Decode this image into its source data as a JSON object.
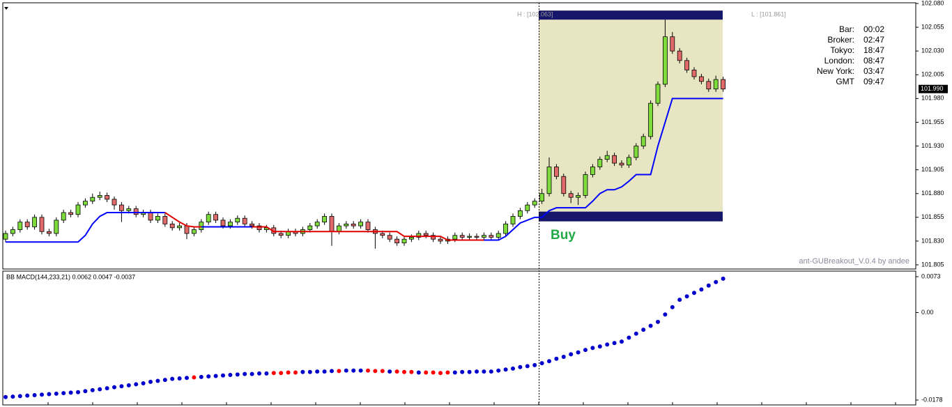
{
  "chart_data": [
    {
      "type": "candlestick",
      "ylim": [
        101.805,
        102.08
      ],
      "yticks": [
        {
          "value": 102.08,
          "label": "102.080"
        },
        102.055,
        {
          "value": 102.03,
          "label": "102.030"
        },
        102.005,
        {
          "value": 101.98,
          "label": "101.980"
        },
        101.955,
        {
          "value": 101.93,
          "label": "101.930"
        },
        101.905,
        {
          "value": 101.88,
          "label": "101.880"
        },
        101.855,
        {
          "value": 101.83,
          "label": "101.830"
        },
        101.805
      ],
      "up_color": "#7ddc3c",
      "down_color": "#e06a6a",
      "open": [
        101.832,
        101.838,
        101.842,
        101.85,
        101.845,
        101.855,
        101.84,
        101.838,
        101.852,
        101.86,
        101.858,
        101.868,
        101.872,
        101.876,
        101.878,
        101.874,
        101.868,
        101.862,
        101.864,
        101.858,
        101.86,
        101.852,
        101.856,
        101.848,
        101.844,
        101.846,
        101.838,
        101.842,
        101.85,
        101.858,
        101.852,
        101.846,
        101.85,
        101.854,
        101.848,
        101.846,
        101.842,
        101.844,
        101.838,
        101.836,
        101.84,
        101.838,
        101.842,
        101.846,
        101.85,
        101.856,
        101.84,
        101.846,
        101.848,
        101.846,
        101.85,
        101.842,
        101.838,
        101.836,
        101.832,
        101.828,
        101.832,
        101.834,
        101.838,
        101.836,
        101.832,
        101.83,
        101.832,
        101.836,
        101.834,
        101.835,
        101.834,
        101.836,
        101.834,
        101.838,
        101.848,
        101.856,
        101.862,
        101.868,
        101.872,
        101.88,
        101.908,
        101.898,
        101.88,
        101.876,
        101.878,
        101.9,
        101.908,
        101.916,
        101.92,
        101.912,
        101.91,
        101.918,
        101.93,
        101.94,
        101.975,
        101.995,
        102.045,
        102.03,
        102.02,
        102.01,
        102.003,
        101.998,
        101.99,
        102
      ],
      "high": [
        101.841,
        101.845,
        101.853,
        101.853,
        101.858,
        101.858,
        101.843,
        101.855,
        101.863,
        101.863,
        101.871,
        101.875,
        101.88,
        101.882,
        101.881,
        101.877,
        101.871,
        101.867,
        101.867,
        101.863,
        101.863,
        101.859,
        101.859,
        101.851,
        101.849,
        101.849,
        101.845,
        101.853,
        101.861,
        101.861,
        101.855,
        101.853,
        101.857,
        101.857,
        101.851,
        101.849,
        101.847,
        101.847,
        101.841,
        101.843,
        101.843,
        101.845,
        101.849,
        101.853,
        101.859,
        101.859,
        101.849,
        101.851,
        101.851,
        101.853,
        101.853,
        101.845,
        101.841,
        101.839,
        101.835,
        101.835,
        101.837,
        101.841,
        101.841,
        101.839,
        101.835,
        101.835,
        101.839,
        101.839,
        101.838,
        101.838,
        101.839,
        101.839,
        101.841,
        101.851,
        101.859,
        101.865,
        101.871,
        101.875,
        101.885,
        101.918,
        101.911,
        101.901,
        101.883,
        101.881,
        101.903,
        101.911,
        101.919,
        101.925,
        101.923,
        101.915,
        101.921,
        101.933,
        101.943,
        101.978,
        101.998,
        102.063,
        102.05,
        102.033,
        102.023,
        102.013,
        102.006,
        102.001,
        102.004,
        102.003
      ],
      "low": [
        101.829,
        101.835,
        101.839,
        101.842,
        101.842,
        101.837,
        101.835,
        101.835,
        101.849,
        101.855,
        101.855,
        101.865,
        101.869,
        101.873,
        101.871,
        101.863,
        101.85,
        101.859,
        101.855,
        101.855,
        101.849,
        101.849,
        101.845,
        101.841,
        101.841,
        101.832,
        101.835,
        101.839,
        101.847,
        101.849,
        101.843,
        101.843,
        101.847,
        101.845,
        101.843,
        101.839,
        101.839,
        101.835,
        101.833,
        101.833,
        101.835,
        101.835,
        101.839,
        101.843,
        101.847,
        101.825,
        101.837,
        101.843,
        101.843,
        101.843,
        101.839,
        101.822,
        101.833,
        101.829,
        101.825,
        101.825,
        101.829,
        101.831,
        101.833,
        101.829,
        101.827,
        101.827,
        101.829,
        101.831,
        101.831,
        101.831,
        101.831,
        101.831,
        101.831,
        101.835,
        101.845,
        101.853,
        101.859,
        101.865,
        101.869,
        101.877,
        101.895,
        101.877,
        101.87,
        101.868,
        101.875,
        101.897,
        101.905,
        101.913,
        101.909,
        101.907,
        101.907,
        101.915,
        101.927,
        101.937,
        101.972,
        101.992,
        102.027,
        102.017,
        102.007,
        102,
        101.995,
        101.987,
        101.987,
        101.987
      ],
      "close": [
        101.838,
        101.842,
        101.85,
        101.845,
        101.855,
        101.84,
        101.838,
        101.852,
        101.86,
        101.858,
        101.868,
        101.872,
        101.876,
        101.878,
        101.874,
        101.868,
        101.862,
        101.864,
        101.858,
        101.86,
        101.852,
        101.856,
        101.848,
        101.844,
        101.846,
        101.838,
        101.842,
        101.85,
        101.858,
        101.852,
        101.846,
        101.85,
        101.854,
        101.848,
        101.846,
        101.842,
        101.844,
        101.838,
        101.836,
        101.84,
        101.838,
        101.842,
        101.846,
        101.85,
        101.856,
        101.84,
        101.846,
        101.848,
        101.846,
        101.85,
        101.842,
        101.838,
        101.836,
        101.832,
        101.828,
        101.832,
        101.834,
        101.838,
        101.836,
        101.832,
        101.83,
        101.832,
        101.836,
        101.834,
        101.835,
        101.834,
        101.836,
        101.834,
        101.838,
        101.848,
        101.856,
        101.862,
        101.868,
        101.872,
        101.88,
        101.908,
        101.898,
        101.88,
        101.876,
        101.878,
        101.9,
        101.908,
        101.916,
        101.92,
        101.912,
        101.91,
        101.918,
        101.93,
        101.94,
        101.975,
        101.995,
        102.045,
        102.03,
        102.02,
        102.01,
        102.003,
        101.998,
        101.99,
        102,
        101.99
      ],
      "series": [
        {
          "color": "#0000ff",
          "values": [
            101.829,
            101.829,
            101.829,
            101.829,
            101.829,
            101.829,
            101.829,
            101.829,
            101.829,
            101.829,
            101.829,
            101.836,
            101.848,
            101.856,
            101.86,
            101.86,
            101.86,
            101.86,
            101.86,
            101.86,
            101.86,
            101.86,
            101.86,
            null,
            null,
            null,
            null,
            101.845,
            101.845,
            101.845,
            101.845,
            101.845,
            101.845,
            101.845,
            101.845,
            null,
            null,
            null,
            null,
            null,
            null,
            null,
            null,
            null,
            null,
            null,
            null,
            null,
            null,
            null,
            null,
            null,
            null,
            null,
            null,
            null,
            null,
            null,
            null,
            null,
            null,
            null,
            null,
            null,
            null,
            null,
            101.831,
            101.831,
            101.831,
            101.835,
            101.842,
            101.849,
            101.852,
            101.855,
            101.855,
            101.862,
            101.865,
            101.865,
            101.865,
            101.865,
            101.865,
            101.872,
            101.88,
            101.884,
            101.884,
            101.887,
            101.893,
            101.9,
            101.9,
            101.9,
            101.93,
            101.955,
            101.98,
            101.98,
            101.98,
            101.98,
            101.98,
            101.98,
            101.98,
            101.98
          ]
        },
        {
          "color": "#e00000",
          "values": [
            null,
            null,
            null,
            null,
            null,
            null,
            null,
            null,
            null,
            null,
            null,
            null,
            null,
            null,
            null,
            null,
            null,
            null,
            null,
            null,
            null,
            null,
            101.86,
            101.855,
            101.85,
            101.846,
            101.845,
            101.845,
            null,
            null,
            null,
            null,
            null,
            null,
            101.845,
            101.845,
            101.845,
            101.84,
            101.84,
            101.84,
            101.84,
            101.84,
            101.84,
            101.84,
            101.84,
            101.84,
            101.84,
            101.84,
            101.84,
            101.84,
            101.84,
            101.84,
            101.84,
            101.84,
            101.84,
            101.835,
            101.835,
            101.835,
            101.835,
            101.835,
            101.835,
            101.831,
            101.831,
            101.831,
            101.831,
            101.831,
            101.831,
            null,
            null,
            null,
            null,
            null,
            null,
            null,
            null,
            null,
            null,
            null,
            null,
            null,
            null,
            null,
            null,
            null,
            null,
            null,
            null,
            null,
            null,
            null,
            null,
            null,
            null,
            null,
            null,
            null,
            null,
            null,
            null,
            null
          ]
        }
      ],
      "range_box": {
        "high": 102.063,
        "low": 101.861,
        "high_label": "H : [102.063]",
        "low_label": "L : [101.861]",
        "fill": "#e8e6c2",
        "band_color": "#16166a"
      },
      "current_price": {
        "value": 101.99,
        "label": "101.990"
      },
      "signal_label": "Buy",
      "watermark": "ant-GUBreakout_V.0.4 by andee"
    },
    {
      "type": "scatter",
      "title": "BB MACD(144,233,21) 0.0062 0.0047 -0.0037",
      "ylim": [
        -0.0178,
        0.0073
      ],
      "yticks": [
        0.0073,
        {
          "value": 0,
          "label": "0.00"
        },
        -0.0178
      ],
      "series": [
        {
          "color": "#0000cc",
          "values": [
            -0.0172,
            -0.0171,
            -0.017,
            -0.0169,
            -0.0168,
            -0.0167,
            -0.0166,
            -0.0165,
            -0.0164,
            -0.0163,
            -0.0162,
            -0.016,
            -0.0158,
            -0.0156,
            -0.0154,
            -0.0152,
            -0.015,
            -0.0148,
            -0.0146,
            -0.0144,
            -0.0141,
            -0.0139,
            -0.0137,
            -0.0135,
            -0.0134,
            -0.0133,
            null,
            -0.0131,
            -0.013,
            -0.0129,
            -0.0128,
            -0.0127,
            -0.0126,
            -0.0125,
            -0.0125,
            -0.0124,
            -0.0124,
            null,
            null,
            null,
            null,
            -0.0121,
            -0.0121,
            -0.012,
            -0.012,
            -0.0119,
            null,
            -0.0118,
            -0.0118,
            -0.0118,
            null,
            null,
            null,
            -0.012,
            null,
            null,
            null,
            -0.0122,
            null,
            null,
            null,
            null,
            -0.0122,
            -0.0121,
            -0.0121,
            -0.012,
            -0.012,
            -0.012,
            -0.0118,
            -0.0116,
            -0.0114,
            -0.0111,
            -0.0109,
            -0.0107,
            -0.0103,
            -0.0099,
            -0.0094,
            -0.009,
            -0.0085,
            -0.0081,
            -0.0076,
            -0.0072,
            -0.0069,
            -0.0065,
            -0.0062,
            -0.0059,
            -0.0051,
            -0.0043,
            -0.0035,
            -0.0027,
            -0.0019,
            -0.0004,
            0.0011,
            0.0026,
            0.0033,
            0.004,
            0.0047,
            0.0055,
            0.0062,
            0.0069
          ]
        },
        {
          "color": "#ff0000",
          "values": [
            null,
            null,
            null,
            null,
            null,
            null,
            null,
            null,
            null,
            null,
            null,
            null,
            null,
            null,
            null,
            null,
            null,
            null,
            null,
            null,
            null,
            null,
            null,
            null,
            null,
            null,
            -0.0132,
            null,
            null,
            null,
            null,
            null,
            null,
            null,
            null,
            null,
            null,
            -0.0123,
            -0.0123,
            -0.0122,
            -0.0122,
            null,
            null,
            null,
            null,
            null,
            -0.0119,
            null,
            null,
            null,
            -0.0118,
            -0.0119,
            -0.0119,
            null,
            -0.012,
            -0.0121,
            -0.0121,
            null,
            -0.0122,
            -0.0122,
            -0.0123,
            -0.0122,
            null,
            null,
            null,
            null,
            null,
            null,
            null,
            null,
            null,
            null,
            null,
            null,
            null,
            null,
            null,
            null,
            null,
            null,
            null,
            null,
            null,
            null,
            null,
            null,
            null,
            null,
            null,
            null,
            null,
            null,
            null,
            null,
            null,
            null,
            null,
            null,
            null,
            null
          ]
        }
      ]
    }
  ],
  "clock": [
    {
      "label": "Bar:",
      "value": "00:02"
    },
    {
      "label": "Broker:",
      "value": "02:47"
    },
    {
      "label": "Tokyo:",
      "value": "18:47"
    },
    {
      "label": "London:",
      "value": "08:47"
    },
    {
      "label": "New York:",
      "value": "03:47"
    },
    {
      "label": "GMT",
      "value": "09:47"
    }
  ]
}
